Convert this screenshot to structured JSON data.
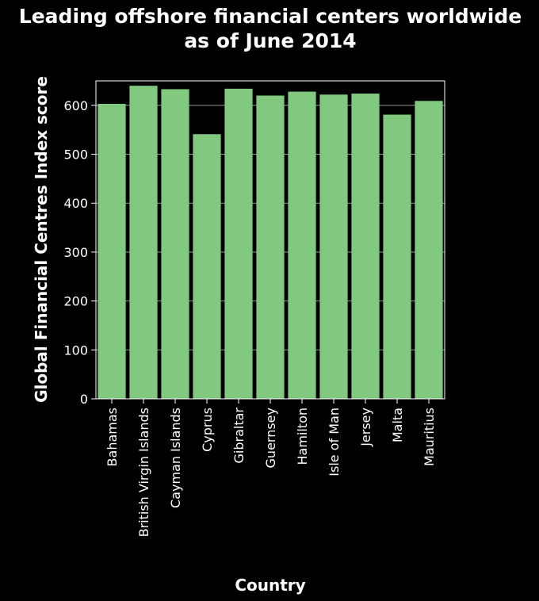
{
  "chart_data": {
    "type": "bar",
    "title_lines": [
      "Leading offshore financial centers worldwide",
      "as of June 2014"
    ],
    "xlabel": "Country",
    "ylabel": "Global Financial Centres Index score",
    "categories": [
      "Bahamas",
      "British Virgin Islands",
      "Cayman Islands",
      "Cyprus",
      "Gibraltar",
      "Guernsey",
      "Hamilton",
      "Isle of Man",
      "Jersey",
      "Malta",
      "Mauritius"
    ],
    "values": [
      603,
      640,
      633,
      541,
      634,
      620,
      628,
      622,
      624,
      581,
      609
    ],
    "ylim": [
      0,
      650
    ],
    "yticks": [
      0,
      100,
      200,
      300,
      400,
      500,
      600
    ],
    "grid": true,
    "legend": "none",
    "colors": {
      "background": "#000000",
      "bar": "#80c97f",
      "grid": "#9a9a9a",
      "text": "#ffffff"
    }
  }
}
